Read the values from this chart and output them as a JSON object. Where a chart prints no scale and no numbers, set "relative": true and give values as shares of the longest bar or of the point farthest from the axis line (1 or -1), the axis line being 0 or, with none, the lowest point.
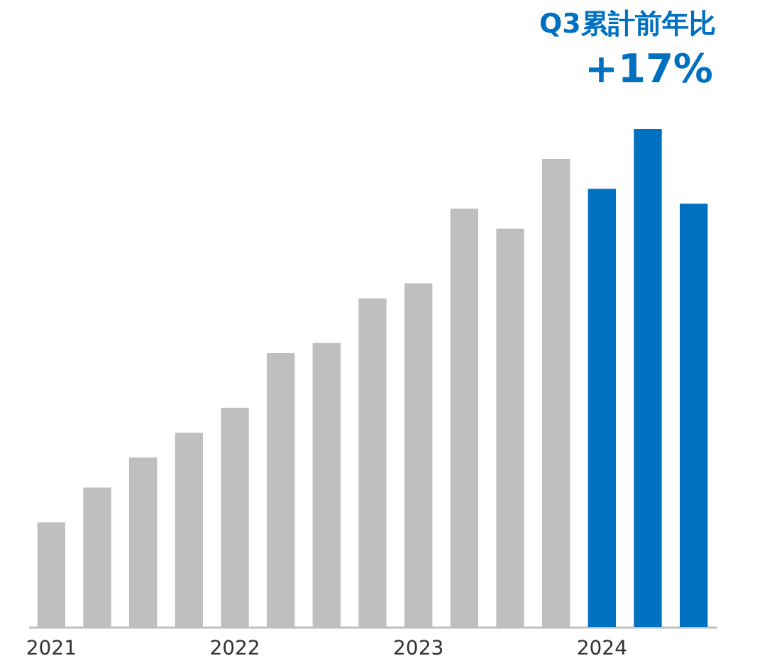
{
  "chart_data": {
    "type": "bar",
    "relative": true,
    "categories": [
      "2021",
      null,
      null,
      null,
      "2022",
      null,
      null,
      null,
      "2023",
      null,
      null,
      null,
      "2024",
      null,
      null
    ],
    "values": [
      0.21,
      0.28,
      0.34,
      0.39,
      0.44,
      0.55,
      0.57,
      0.66,
      0.69,
      0.84,
      0.8,
      0.94,
      0.88,
      1,
      0.85
    ],
    "colors": [
      "#bfbfbf",
      "#bfbfbf",
      "#bfbfbf",
      "#bfbfbf",
      "#bfbfbf",
      "#bfbfbf",
      "#bfbfbf",
      "#bfbfbf",
      "#bfbfbf",
      "#bfbfbf",
      "#bfbfbf",
      "#bfbfbf",
      "#0070c0",
      "#0070c0",
      "#0070c0"
    ],
    "annotations": [
      "Q3累計前年比",
      "+17%"
    ],
    "grid": false
  }
}
